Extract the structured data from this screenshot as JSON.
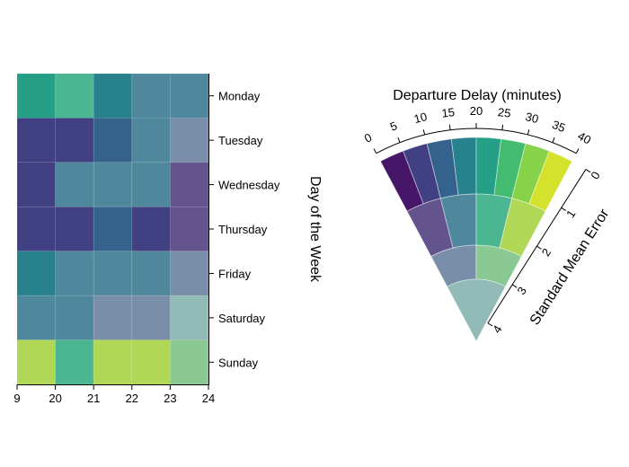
{
  "chart_data": [
    {
      "type": "heatmap",
      "x_ticks": [
        "9",
        "20",
        "21",
        "22",
        "23",
        "24"
      ],
      "y_categories": [
        "Monday",
        "Tuesday",
        "Wednesday",
        "Thursday",
        "Friday",
        "Saturday",
        "Sunday"
      ],
      "y_label": "Day of the Week",
      "cells": [
        [
          {
            "delay": 20,
            "error": 0.5
          },
          {
            "delay": 27,
            "error": 1.5
          },
          {
            "delay": 18,
            "error": 0.5
          },
          {
            "delay": 12,
            "error": 1.5
          },
          {
            "delay": 13,
            "error": 1.5
          }
        ],
        [
          {
            "delay": 9,
            "error": 0.5
          },
          {
            "delay": 9,
            "error": 0.5
          },
          {
            "delay": 10,
            "error": 0.5
          },
          {
            "delay": 12,
            "error": 1.5
          },
          {
            "delay": 5,
            "error": 2.5
          }
        ],
        [
          {
            "delay": 9,
            "error": 0.5
          },
          {
            "delay": 12,
            "error": 1.5
          },
          {
            "delay": 12,
            "error": 1.5
          },
          {
            "delay": 12,
            "error": 1.5
          },
          {
            "delay": 3,
            "error": 1.5
          }
        ],
        [
          {
            "delay": 9,
            "error": 0.5
          },
          {
            "delay": 9,
            "error": 0.5
          },
          {
            "delay": 10,
            "error": 0.5
          },
          {
            "delay": 5,
            "error": 0.5
          },
          {
            "delay": 3,
            "error": 1.5
          }
        ],
        [
          {
            "delay": 17,
            "error": 0.5
          },
          {
            "delay": 12,
            "error": 1.5
          },
          {
            "delay": 12,
            "error": 1.5
          },
          {
            "delay": 12,
            "error": 1.5
          },
          {
            "delay": 7,
            "error": 2.5
          }
        ],
        [
          {
            "delay": 12,
            "error": 1.5
          },
          {
            "delay": 12,
            "error": 1.5
          },
          {
            "delay": 5,
            "error": 2.5
          },
          {
            "delay": 5,
            "error": 2.5
          },
          {
            "delay": 22,
            "error": 3.5
          }
        ],
        [
          {
            "delay": 33,
            "error": 1.5
          },
          {
            "delay": 27,
            "error": 1.5
          },
          {
            "delay": 33,
            "error": 1.5
          },
          {
            "delay": 35,
            "error": 1.5
          },
          {
            "delay": 33,
            "error": 2.5
          }
        ]
      ]
    },
    {
      "type": "legend",
      "title": "Departure Delay (minutes)",
      "delay_ticks": [
        "0",
        "5",
        "10",
        "15",
        "20",
        "25",
        "30",
        "35",
        "40"
      ],
      "delay_range": [
        0,
        40
      ],
      "error_label": "Standard Mean Error",
      "error_ticks": [
        "0",
        "1",
        "2",
        "3",
        "4"
      ],
      "error_range": [
        0,
        4
      ]
    }
  ],
  "colors": {
    "viridis": [
      "#440154",
      "#472d7b",
      "#3b528b",
      "#2c728e",
      "#21918c",
      "#28ae80",
      "#5ec962",
      "#addc30",
      "#fde725"
    ],
    "uncertain": "#b7c9c6",
    "axis": "#000000"
  }
}
